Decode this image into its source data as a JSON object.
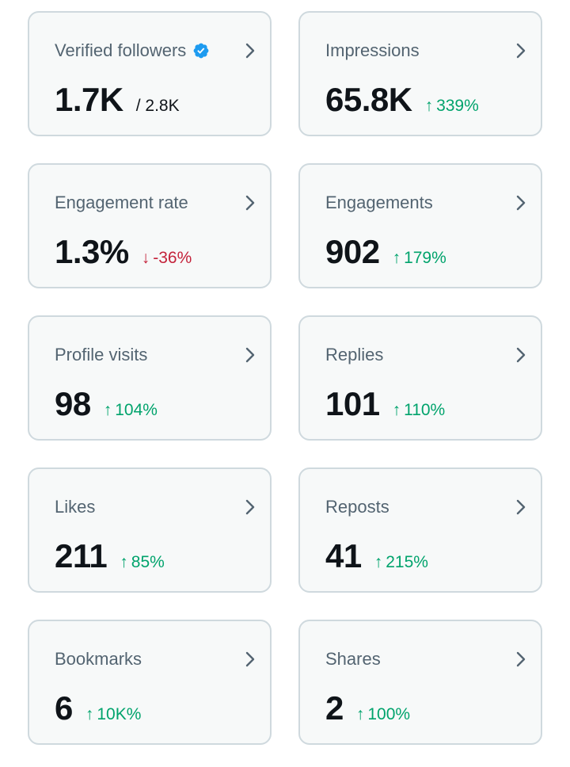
{
  "colors": {
    "card_bg": "#f7f9f9",
    "card_border": "#cfd9de",
    "label": "#536471",
    "value": "#0f1419",
    "up": "#00a36c",
    "down": "#c4233b",
    "verified": "#1d9bf0",
    "chevron": "#536471"
  },
  "cards": [
    {
      "label": "Verified followers",
      "value": "1.7K",
      "sub": "/ 2.8K",
      "verified_icon": "verified-badge-icon"
    },
    {
      "label": "Impressions",
      "value": "65.8K",
      "change": "339%",
      "direction": "up"
    },
    {
      "label": "Engagement rate",
      "value": "1.3%",
      "change": "-36%",
      "direction": "down"
    },
    {
      "label": "Engagements",
      "value": "902",
      "change": "179%",
      "direction": "up"
    },
    {
      "label": "Profile visits",
      "value": "98",
      "change": "104%",
      "direction": "up"
    },
    {
      "label": "Replies",
      "value": "101",
      "change": "110%",
      "direction": "up"
    },
    {
      "label": "Likes",
      "value": "211",
      "change": "85%",
      "direction": "up"
    },
    {
      "label": "Reposts",
      "value": "41",
      "change": "215%",
      "direction": "up"
    },
    {
      "label": "Bookmarks",
      "value": "6",
      "change": "10K%",
      "direction": "up"
    },
    {
      "label": "Shares",
      "value": "2",
      "change": "100%",
      "direction": "up"
    }
  ],
  "icons": {
    "chevron": "chevron-right-icon",
    "up_arrow": "arrow-up-icon",
    "down_arrow": "arrow-down-icon"
  }
}
